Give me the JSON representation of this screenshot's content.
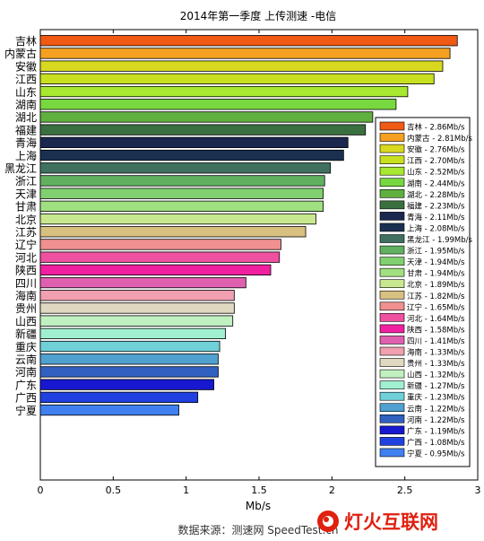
{
  "chart_data": {
    "type": "bar",
    "orientation": "horizontal",
    "title": "2014年第一季度 上传测速 -电信",
    "xlabel": "Mb/s",
    "ylabel": "",
    "xlim": [
      0,
      3
    ],
    "xticks": [
      "0",
      "0.5",
      "1",
      "1.5",
      "2",
      "2.5",
      "3"
    ],
    "grid": false,
    "legend_position": "right",
    "categories": [
      "吉林",
      "内蒙古",
      "安徽",
      "江西",
      "山东",
      "湖南",
      "湖北",
      "福建",
      "青海",
      "上海",
      "黑龙江",
      "浙江",
      "天津",
      "甘肃",
      "北京",
      "江苏",
      "辽宁",
      "河北",
      "陕西",
      "四川",
      "海南",
      "贵州",
      "山西",
      "新疆",
      "重庆",
      "云南",
      "河南",
      "广东",
      "广西",
      "宁夏"
    ],
    "values": [
      2.86,
      2.81,
      2.76,
      2.7,
      2.52,
      2.44,
      2.28,
      2.23,
      2.11,
      2.08,
      1.99,
      1.95,
      1.94,
      1.94,
      1.89,
      1.82,
      1.65,
      1.64,
      1.58,
      1.41,
      1.33,
      1.33,
      1.32,
      1.27,
      1.23,
      1.22,
      1.22,
      1.19,
      1.08,
      0.95
    ],
    "legend_labels": [
      "吉林 - 2.86Mb/s",
      "内蒙古 - 2.81Mb/s",
      "安徽 - 2.76Mb/s",
      "江西 - 2.70Mb/s",
      "山东 - 2.52Mb/s",
      "湖南 - 2.44Mb/s",
      "湖北 - 2.28Mb/s",
      "福建 - 2.23Mb/s",
      "青海 - 2.11Mb/s",
      "上海 - 2.08Mb/s",
      "黑龙江 - 1.99Mb/s",
      "浙江 - 1.95Mb/s",
      "天津 - 1.94Mb/s",
      "甘肃 - 1.94Mb/s",
      "北京 - 1.89Mb/s",
      "江苏 - 1.82Mb/s",
      "辽宁 - 1.65Mb/s",
      "河北 - 1.64Mb/s",
      "陕西 - 1.58Mb/s",
      "四川 - 1.41Mb/s",
      "海南 - 1.33Mb/s",
      "贵州 - 1.33Mb/s",
      "山西 - 1.32Mb/s",
      "新疆 - 1.27Mb/s",
      "重庆 - 1.23Mb/s",
      "云南 - 1.22Mb/s",
      "河南 - 1.22Mb/s",
      "广东 - 1.19Mb/s",
      "广西 - 1.08Mb/s",
      "宁夏 - 0.95Mb/s"
    ],
    "colors": [
      "#f05a14",
      "#f5a020",
      "#d8d820",
      "#c8e020",
      "#a8e830",
      "#78d840",
      "#60b040",
      "#3a7040",
      "#1a2850",
      "#1a3050",
      "#407060",
      "#60b060",
      "#80d070",
      "#a0e080",
      "#c8e890",
      "#d8c080",
      "#f09090",
      "#f050a0",
      "#f020a0",
      "#e060b0",
      "#f0a0b0",
      "#e0d8c0",
      "#c0f0c0",
      "#a0f0d0",
      "#70d0d8",
      "#50a0d0",
      "#3060c0",
      "#1818d0",
      "#2040e0",
      "#4080f0"
    ],
    "source": "数据来源：测速网 SpeedTest.cn",
    "watermark": "灯火互联网"
  }
}
